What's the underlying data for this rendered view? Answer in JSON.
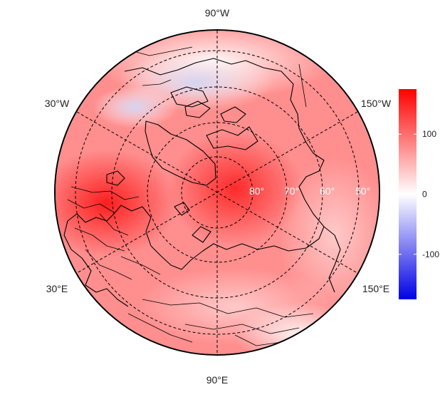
{
  "map": {
    "projection": "north-polar stereographic",
    "field_description": "anomaly field shaded blue-white-red",
    "longitude_labels": {
      "top": "90°W",
      "bottom": "90°E",
      "upper_left": "30°W",
      "upper_right": "150°W",
      "lower_left": "30°E",
      "lower_right": "150°E"
    },
    "latitude_labels": [
      "80°",
      "70°",
      "60°",
      "50°"
    ]
  },
  "colorbar": {
    "ticks": [
      "100",
      "0",
      "-100"
    ],
    "tick_values": [
      100,
      0,
      -100
    ],
    "range": [
      -175,
      175
    ],
    "colors": {
      "low": "#0000e6",
      "mid": "#ffffff",
      "high": "#ff0000"
    }
  },
  "style": {
    "ocean_base": "#ff8c8c",
    "blue_anomaly": "#dcdcf4",
    "strong_red": "#ff3030",
    "coast_color": "#000000"
  }
}
